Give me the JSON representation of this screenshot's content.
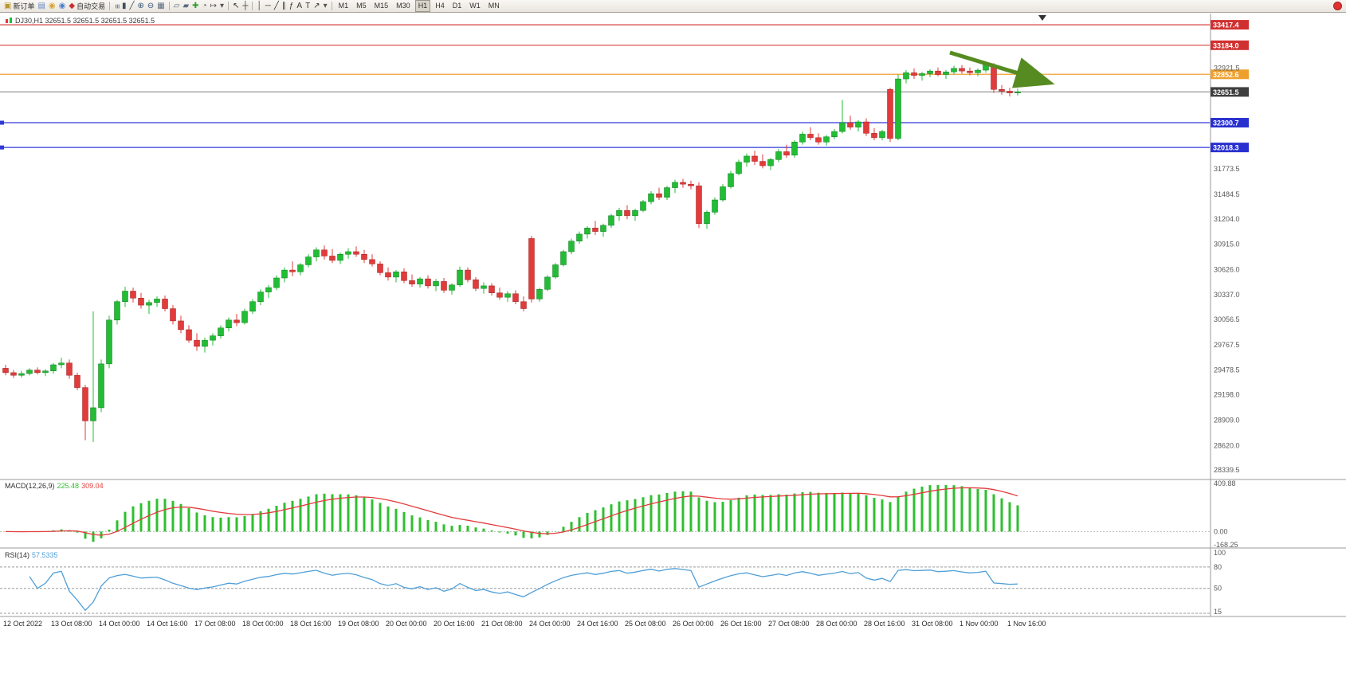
{
  "toolbar": {
    "groups": [
      [
        {
          "name": "new-order-button",
          "glyph": "▣",
          "color": "#b8962e",
          "label": "新订单"
        },
        {
          "name": "chart-window-button",
          "glyph": "▤",
          "color": "#5f84c0"
        },
        {
          "name": "alerts-button",
          "glyph": "◉",
          "color": "#d4a43a"
        },
        {
          "name": "community-button",
          "glyph": "◉",
          "color": "#4a7fd0"
        },
        {
          "name": "autotrading-button",
          "glyph": "◆",
          "color": "#cc2f2f",
          "label": "自动交易"
        }
      ],
      [
        {
          "name": "bars-chart-button",
          "glyph": "≡",
          "rot": true,
          "color": "#3d4d66"
        },
        {
          "name": "candlestick-chart-button",
          "glyph": "▮",
          "color": "#3d4d66"
        },
        {
          "name": "line-chart-button",
          "glyph": "╱",
          "color": "#3d4d66"
        },
        {
          "name": "zoom-in-button",
          "glyph": "⊕",
          "color": "#36527a"
        },
        {
          "name": "zoom-out-button",
          "glyph": "⊖",
          "color": "#36527a"
        },
        {
          "name": "tile-windows-button",
          "glyph": "▦",
          "color": "#5a6b80"
        }
      ],
      [
        {
          "name": "arrange-windows-button",
          "glyph": "▱",
          "color": "#5a6b80"
        },
        {
          "name": "cascade-windows-button",
          "glyph": "▰",
          "color": "#5a6b80"
        },
        {
          "name": "add-indicator-button",
          "glyph": "✚",
          "color": "#2f9e2f"
        },
        {
          "name": "period-clock-button",
          "glyph": "◔",
          "color": "#555555"
        },
        {
          "name": "chart-shift-button",
          "glyph": "↦",
          "color": "#555555"
        },
        {
          "name": "templates-dropdown",
          "glyph": "▾",
          "color": "#555555"
        }
      ],
      [
        {
          "name": "cursor-button",
          "glyph": "↖",
          "color": "#333333"
        },
        {
          "name": "crosshair-button",
          "glyph": "┼",
          "color": "#333333"
        }
      ],
      [
        {
          "name": "vertical-line-button",
          "glyph": "│",
          "color": "#333333"
        },
        {
          "name": "horizontal-line-button",
          "glyph": "─",
          "color": "#333333"
        },
        {
          "name": "trendline-button",
          "glyph": "╱",
          "color": "#333333"
        },
        {
          "name": "channel-button",
          "glyph": "∥",
          "color": "#333333"
        },
        {
          "name": "fibonacci-button",
          "glyph": "ƒ",
          "color": "#333333"
        },
        {
          "name": "text-button",
          "glyph": "A",
          "color": "#333333"
        },
        {
          "name": "label-button",
          "glyph": "T",
          "color": "#333333"
        },
        {
          "name": "arrows-button",
          "glyph": "↗",
          "color": "#333333"
        },
        {
          "name": "shapes-dropdown",
          "glyph": "▾",
          "color": "#555555"
        }
      ]
    ],
    "timeframes": [
      "M1",
      "M5",
      "M15",
      "M30",
      "H1",
      "H4",
      "D1",
      "W1",
      "MN"
    ],
    "active_timeframe": "H1"
  },
  "symbol_line": {
    "text": "DJ30,H1  32651.5 32651.5 32651.5 32651.5"
  },
  "chart_data": {
    "type": "candlestick",
    "symbol": "DJ30",
    "timeframe": "H1",
    "ohlc_quote": [
      32651.5,
      32651.5,
      32651.5,
      32651.5
    ],
    "price_axis": {
      "min": 28250,
      "max": 33500,
      "ticks": [
        "32921.5",
        "31773.5",
        "31484.5",
        "31204.0",
        "30915.0",
        "30626.0",
        "30337.0",
        "30056.5",
        "29767.5",
        "29478.5",
        "29198.0",
        "28909.0",
        "28620.0",
        "28339.5"
      ]
    },
    "levels": [
      {
        "label": "33417.4",
        "price": 33417.4,
        "color": "#d84040",
        "badge": "#d13030",
        "text": "#ffffff"
      },
      {
        "label": "33184.0",
        "price": 33184.0,
        "color": "#d84040",
        "badge": "#d13030",
        "text": "#ffffff"
      },
      {
        "label": "32852.6",
        "price": 32852.6,
        "color": "#f0a032",
        "badge": "#efa02c",
        "text": "#ffffff"
      },
      {
        "label": "32651.5",
        "price": 32651.5,
        "color": "#8a8a8a",
        "badge": "#3f3f3f",
        "text": "#ffffff",
        "current": true
      },
      {
        "label": "32300.7",
        "price": 32300.7,
        "color": "#3038d8",
        "badge": "#2830cf",
        "text": "#ffffff",
        "handle": true
      },
      {
        "label": "32018.3",
        "price": 32018.3,
        "color": "#3038d8",
        "badge": "#2830cf",
        "text": "#ffffff",
        "handle": true
      }
    ],
    "candles": [
      [
        29500,
        29540,
        29420,
        29450
      ],
      [
        29450,
        29480,
        29390,
        29420
      ],
      [
        29420,
        29470,
        29395,
        29440
      ],
      [
        29440,
        29500,
        29420,
        29480
      ],
      [
        29480,
        29510,
        29430,
        29450
      ],
      [
        29450,
        29490,
        29410,
        29470
      ],
      [
        29470,
        29560,
        29440,
        29540
      ],
      [
        29540,
        29620,
        29500,
        29560
      ],
      [
        29560,
        29600,
        29380,
        29420
      ],
      [
        29420,
        29450,
        29250,
        29280
      ],
      [
        29280,
        29310,
        28680,
        28900
      ],
      [
        28900,
        30150,
        28660,
        29050
      ],
      [
        29050,
        29600,
        29000,
        29550
      ],
      [
        29550,
        30100,
        29500,
        30050
      ],
      [
        30050,
        30280,
        30000,
        30260
      ],
      [
        30260,
        30430,
        30200,
        30380
      ],
      [
        30380,
        30420,
        30250,
        30300
      ],
      [
        30300,
        30360,
        30180,
        30220
      ],
      [
        30220,
        30280,
        30120,
        30250
      ],
      [
        30250,
        30320,
        30200,
        30290
      ],
      [
        30290,
        30330,
        30150,
        30180
      ],
      [
        30180,
        30220,
        30000,
        30040
      ],
      [
        30040,
        30100,
        29900,
        29940
      ],
      [
        29940,
        29990,
        29790,
        29820
      ],
      [
        29820,
        29900,
        29700,
        29750
      ],
      [
        29750,
        29850,
        29680,
        29820
      ],
      [
        29820,
        29900,
        29760,
        29870
      ],
      [
        29870,
        29990,
        29840,
        29960
      ],
      [
        29960,
        30080,
        29920,
        30050
      ],
      [
        30050,
        30120,
        29980,
        30020
      ],
      [
        30020,
        30180,
        30000,
        30150
      ],
      [
        30150,
        30290,
        30120,
        30260
      ],
      [
        30260,
        30400,
        30220,
        30370
      ],
      [
        30370,
        30450,
        30300,
        30420
      ],
      [
        30420,
        30560,
        30390,
        30530
      ],
      [
        30530,
        30650,
        30480,
        30620
      ],
      [
        30620,
        30720,
        30550,
        30600
      ],
      [
        30600,
        30700,
        30560,
        30680
      ],
      [
        30680,
        30800,
        30650,
        30770
      ],
      [
        30770,
        30880,
        30720,
        30850
      ],
      [
        30850,
        30900,
        30740,
        30780
      ],
      [
        30780,
        30860,
        30700,
        30730
      ],
      [
        30730,
        30820,
        30690,
        30800
      ],
      [
        30800,
        30870,
        30750,
        30830
      ],
      [
        30830,
        30890,
        30770,
        30800
      ],
      [
        30800,
        30850,
        30700,
        30740
      ],
      [
        30740,
        30800,
        30660,
        30690
      ],
      [
        30690,
        30720,
        30560,
        30590
      ],
      [
        30590,
        30650,
        30500,
        30540
      ],
      [
        30540,
        30620,
        30480,
        30600
      ],
      [
        30600,
        30640,
        30470,
        30500
      ],
      [
        30500,
        30570,
        30430,
        30460
      ],
      [
        30460,
        30540,
        30420,
        30520
      ],
      [
        30520,
        30560,
        30410,
        30440
      ],
      [
        30440,
        30520,
        30380,
        30490
      ],
      [
        30490,
        30530,
        30360,
        30390
      ],
      [
        30390,
        30470,
        30340,
        30450
      ],
      [
        30450,
        30660,
        30430,
        30620
      ],
      [
        30620,
        30650,
        30480,
        30510
      ],
      [
        30510,
        30540,
        30380,
        30410
      ],
      [
        30410,
        30480,
        30350,
        30440
      ],
      [
        30440,
        30470,
        30330,
        30360
      ],
      [
        30360,
        30420,
        30280,
        30310
      ],
      [
        30310,
        30380,
        30260,
        30350
      ],
      [
        30350,
        30390,
        30230,
        30260
      ],
      [
        30260,
        30320,
        30150,
        30180
      ],
      [
        30980,
        31010,
        30250,
        30290
      ],
      [
        30290,
        30420,
        30260,
        30400
      ],
      [
        30400,
        30560,
        30380,
        30540
      ],
      [
        30540,
        30700,
        30520,
        30680
      ],
      [
        30680,
        30850,
        30660,
        30830
      ],
      [
        30830,
        30980,
        30800,
        30950
      ],
      [
        30950,
        31060,
        30920,
        31030
      ],
      [
        31030,
        31120,
        30980,
        31100
      ],
      [
        31100,
        31180,
        31020,
        31060
      ],
      [
        31060,
        31150,
        31000,
        31130
      ],
      [
        31130,
        31260,
        31100,
        31240
      ],
      [
        31240,
        31330,
        31180,
        31300
      ],
      [
        31300,
        31360,
        31200,
        31240
      ],
      [
        31240,
        31320,
        31180,
        31300
      ],
      [
        31300,
        31420,
        31280,
        31400
      ],
      [
        31400,
        31520,
        31370,
        31490
      ],
      [
        31490,
        31560,
        31420,
        31450
      ],
      [
        31450,
        31580,
        31420,
        31560
      ],
      [
        31560,
        31650,
        31500,
        31620
      ],
      [
        31620,
        31660,
        31560,
        31600
      ],
      [
        31600,
        31640,
        31540,
        31580
      ],
      [
        31580,
        31620,
        31100,
        31150
      ],
      [
        31150,
        31300,
        31090,
        31280
      ],
      [
        31280,
        31450,
        31250,
        31420
      ],
      [
        31420,
        31600,
        31400,
        31570
      ],
      [
        31570,
        31750,
        31550,
        31720
      ],
      [
        31720,
        31880,
        31700,
        31850
      ],
      [
        31850,
        31950,
        31800,
        31920
      ],
      [
        31920,
        31980,
        31820,
        31860
      ],
      [
        31860,
        31940,
        31780,
        31810
      ],
      [
        31810,
        31900,
        31760,
        31880
      ],
      [
        31880,
        32000,
        31850,
        31970
      ],
      [
        31970,
        32050,
        31900,
        31930
      ],
      [
        31930,
        32100,
        31900,
        32080
      ],
      [
        32080,
        32200,
        32050,
        32170
      ],
      [
        32170,
        32250,
        32100,
        32130
      ],
      [
        32130,
        32180,
        32050,
        32080
      ],
      [
        32080,
        32160,
        32040,
        32140
      ],
      [
        32140,
        32230,
        32110,
        32200
      ],
      [
        32200,
        32560,
        32180,
        32300
      ],
      [
        32300,
        32380,
        32220,
        32250
      ],
      [
        32250,
        32330,
        32200,
        32310
      ],
      [
        32310,
        32350,
        32150,
        32180
      ],
      [
        32180,
        32240,
        32100,
        32130
      ],
      [
        32130,
        32220,
        32100,
        32200
      ],
      [
        32680,
        32700,
        32080,
        32120
      ],
      [
        32120,
        32850,
        32100,
        32800
      ],
      [
        32800,
        32900,
        32750,
        32870
      ],
      [
        32870,
        32920,
        32800,
        32840
      ],
      [
        32840,
        32880,
        32780,
        32860
      ],
      [
        32860,
        32910,
        32820,
        32890
      ],
      [
        32890,
        32930,
        32830,
        32850
      ],
      [
        32850,
        32900,
        32800,
        32880
      ],
      [
        32880,
        32950,
        32850,
        32920
      ],
      [
        32920,
        32960,
        32860,
        32890
      ],
      [
        32890,
        32930,
        32840,
        32870
      ],
      [
        32870,
        32920,
        32830,
        32900
      ],
      [
        32900,
        32990,
        32870,
        32960
      ],
      [
        32960,
        32980,
        32640,
        32680
      ],
      [
        32680,
        32730,
        32620,
        32660
      ],
      [
        32660,
        32700,
        32600,
        32640
      ],
      [
        32640,
        32690,
        32610,
        32651.5
      ]
    ],
    "time_labels": [
      "12 Oct 2022",
      "13 Oct 08:00",
      "14 Oct 00:00",
      "14 Oct 16:00",
      "17 Oct 08:00",
      "18 Oct 00:00",
      "18 Oct 16:00",
      "19 Oct 08:00",
      "20 Oct 00:00",
      "20 Oct 16:00",
      "21 Oct 08:00",
      "24 Oct 00:00",
      "24 Oct 16:00",
      "25 Oct 08:00",
      "26 Oct 00:00",
      "26 Oct 16:00",
      "27 Oct 08:00",
      "28 Oct 00:00",
      "28 Oct 16:00",
      "31 Oct 08:00",
      "1 Nov 00:00",
      "1 Nov 16:00"
    ],
    "macd": {
      "label": "MACD(12,26,9)",
      "main_value": "225.48",
      "signal_value": "309.04",
      "params": [
        12,
        26,
        9
      ],
      "axis_max": "409.88",
      "axis_zero": "0.00",
      "axis_min": "-168.25"
    },
    "rsi": {
      "label": "RSI(14)",
      "value": "57.5335",
      "period": 14,
      "axis_labels": [
        "100",
        "80",
        "50",
        "15"
      ],
      "level_lines": [
        80,
        50,
        15
      ]
    },
    "annotation_arrow": {
      "color": "#568b22"
    },
    "colors": {
      "bull": "#22bd35",
      "bear": "#e23b3b",
      "bull_edge": "#0e7a1e",
      "bear_edge": "#9e2222",
      "macd_hist": "#2fbf2f",
      "macd_signal": "#e23b3b",
      "rsi_line": "#4f9fd8"
    }
  }
}
